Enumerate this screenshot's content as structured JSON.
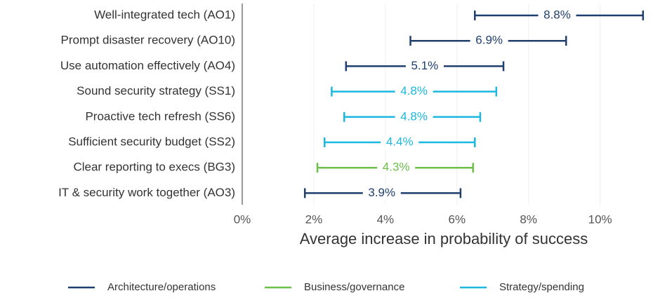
{
  "chart_data": {
    "type": "range",
    "x_label": "Average increase in probability of success",
    "categories": [
      "Well-integrated tech (AO1)",
      "Prompt disaster recovery (AO10)",
      "Use automation effectively (AO4)",
      "Sound security strategy (SS1)",
      "Proactive tech refresh (SS6)",
      "Sufficient security budget (SS2)",
      "Clear reporting to execs (BG3)",
      "IT & security work together (AO3)"
    ],
    "series": [
      {
        "name": "Architecture/operations",
        "color": "#1f3f6e",
        "values": [
          8.8,
          6.9,
          5.1,
          null,
          null,
          null,
          null,
          3.9
        ],
        "value_labels": [
          "8.8%",
          "6.9%",
          "5.1%",
          null,
          null,
          null,
          null,
          "3.9%"
        ],
        "low": [
          6.5,
          4.7,
          2.9,
          null,
          null,
          null,
          null,
          1.75
        ],
        "high": [
          11.2,
          9.05,
          7.3,
          null,
          null,
          null,
          null,
          6.1
        ]
      },
      {
        "name": "Business/governance",
        "color": "#6cc04a",
        "values": [
          null,
          null,
          null,
          null,
          null,
          null,
          4.3,
          null
        ],
        "value_labels": [
          null,
          null,
          null,
          null,
          null,
          null,
          "4.3%",
          null
        ],
        "low": [
          null,
          null,
          null,
          null,
          null,
          null,
          2.1,
          null
        ],
        "high": [
          null,
          null,
          null,
          null,
          null,
          null,
          6.45,
          null
        ]
      },
      {
        "name": "Strategy/spending",
        "color": "#1bb8e0",
        "values": [
          null,
          null,
          null,
          4.8,
          4.8,
          4.4,
          null,
          null
        ],
        "value_labels": [
          null,
          null,
          null,
          "4.8%",
          "4.8%",
          "4.4%",
          null,
          null
        ],
        "low": [
          null,
          null,
          null,
          2.5,
          2.85,
          2.3,
          null,
          null
        ],
        "high": [
          null,
          null,
          null,
          7.1,
          6.65,
          6.5,
          null,
          null
        ]
      }
    ],
    "xlim": [
      0,
      11.4
    ],
    "xticks": [
      {
        "value": 0,
        "label": "0%"
      },
      {
        "value": 2,
        "label": "2%"
      },
      {
        "value": 4,
        "label": "4%"
      },
      {
        "value": 6,
        "label": "6%"
      },
      {
        "value": 8,
        "label": "8%"
      },
      {
        "value": 10,
        "label": "10%"
      }
    ],
    "grid": true,
    "legend": "bottom"
  }
}
